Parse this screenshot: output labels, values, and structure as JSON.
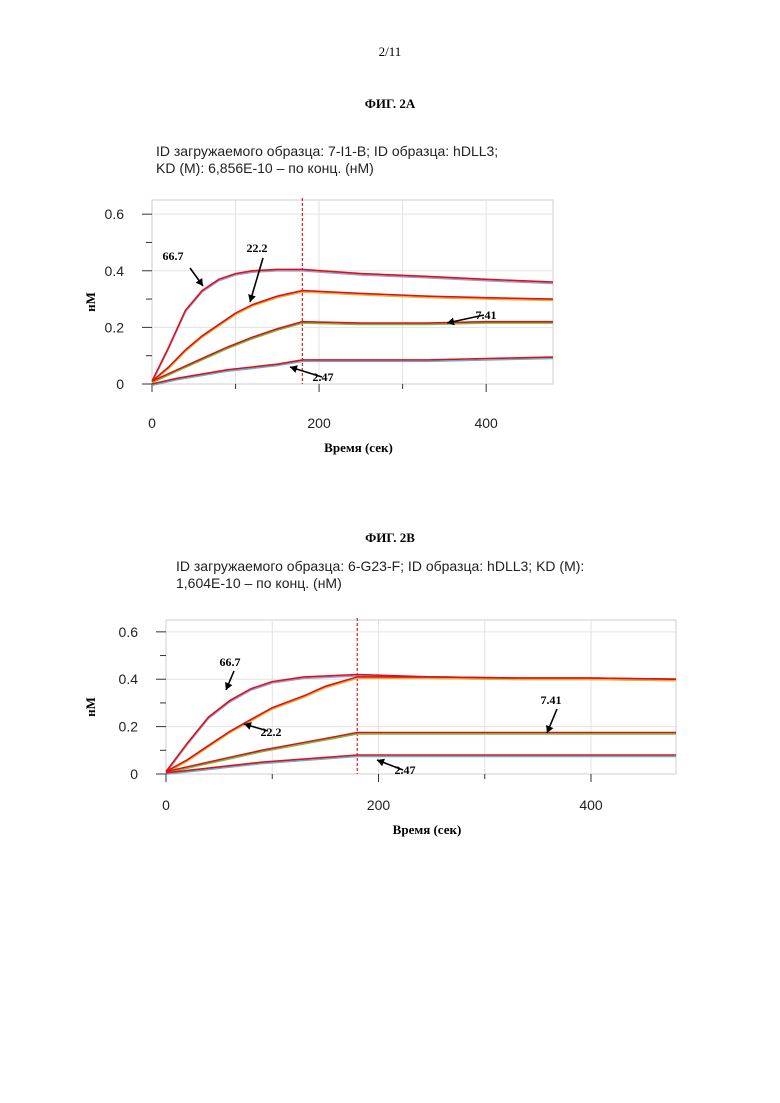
{
  "page": {
    "number": "2/11"
  },
  "charts": [
    {
      "id": "a",
      "fig_title": "ФИГ. 2А",
      "info_line1": "ID загружаемого образца: 7-I1-B; ID образца: hDLL3;",
      "info_line2": "KD (М): 6,856E-10 – по конц. (нМ)",
      "xlabel": "Время (сек)",
      "ylabel": "нМ",
      "xticks": [
        "0",
        "200",
        "400"
      ],
      "yticks": [
        "0",
        "0.2",
        "0.4",
        "0.6"
      ],
      "annotations": [
        "66.7",
        "22.2",
        "7.41",
        "2.47"
      ]
    },
    {
      "id": "b",
      "fig_title": "ФИГ. 2В",
      "info_line1": "ID загружаемого образца: 6-G23-F; ID образца: hDLL3; KD (M):",
      "info_line2": "1,604E-10 – по конц. (нМ)",
      "xlabel": "Время (сек)",
      "ylabel": "нМ",
      "xticks": [
        "0",
        "200",
        "400"
      ],
      "yticks": [
        "0",
        "0.2",
        "0.4",
        "0.6"
      ],
      "annotations": [
        "66.7",
        "22.2",
        "7.41",
        "2.47"
      ]
    }
  ],
  "chart_data": [
    {
      "type": "line",
      "title": "ФИГ. 2А",
      "xlabel": "Время (сек)",
      "ylabel": "нМ",
      "xlim": [
        0,
        480
      ],
      "ylim": [
        0,
        0.65
      ],
      "grid": true,
      "association_end_x": 180,
      "series": [
        {
          "name": "66.7",
          "color": "#9999dd",
          "fit_color": "#e01010",
          "points": [
            [
              0,
              0.01
            ],
            [
              20,
              0.13
            ],
            [
              40,
              0.26
            ],
            [
              60,
              0.33
            ],
            [
              80,
              0.37
            ],
            [
              100,
              0.39
            ],
            [
              120,
              0.4
            ],
            [
              150,
              0.405
            ],
            [
              180,
              0.405
            ],
            [
              250,
              0.39
            ],
            [
              330,
              0.38
            ],
            [
              400,
              0.37
            ],
            [
              480,
              0.36
            ]
          ]
        },
        {
          "name": "22.2",
          "color": "#e8b030",
          "fit_color": "#e01010",
          "points": [
            [
              0,
              0.01
            ],
            [
              20,
              0.06
            ],
            [
              40,
              0.12
            ],
            [
              60,
              0.17
            ],
            [
              80,
              0.21
            ],
            [
              100,
              0.25
            ],
            [
              120,
              0.28
            ],
            [
              150,
              0.31
            ],
            [
              180,
              0.33
            ],
            [
              250,
              0.32
            ],
            [
              330,
              0.31
            ],
            [
              400,
              0.305
            ],
            [
              480,
              0.3
            ]
          ]
        },
        {
          "name": "7.41",
          "color": "#6ac040",
          "fit_color": "#e01010",
          "points": [
            [
              0,
              0.01
            ],
            [
              30,
              0.05
            ],
            [
              60,
              0.09
            ],
            [
              90,
              0.13
            ],
            [
              120,
              0.165
            ],
            [
              150,
              0.195
            ],
            [
              180,
              0.22
            ],
            [
              250,
              0.215
            ],
            [
              330,
              0.215
            ],
            [
              400,
              0.22
            ],
            [
              480,
              0.22
            ]
          ]
        },
        {
          "name": "2.47",
          "color": "#60b0d8",
          "fit_color": "#e01010",
          "points": [
            [
              0,
              0.0
            ],
            [
              30,
              0.02
            ],
            [
              60,
              0.035
            ],
            [
              90,
              0.05
            ],
            [
              120,
              0.06
            ],
            [
              150,
              0.07
            ],
            [
              180,
              0.085
            ],
            [
              250,
              0.085
            ],
            [
              330,
              0.085
            ],
            [
              400,
              0.09
            ],
            [
              480,
              0.095
            ]
          ]
        }
      ]
    },
    {
      "type": "line",
      "title": "ФИГ. 2В",
      "xlabel": "Время (сек)",
      "ylabel": "нМ",
      "xlim": [
        0,
        480
      ],
      "ylim": [
        0,
        0.65
      ],
      "grid": true,
      "association_end_x": 180,
      "series": [
        {
          "name": "66.7",
          "color": "#9999dd",
          "fit_color": "#e01010",
          "points": [
            [
              0,
              0.01
            ],
            [
              20,
              0.13
            ],
            [
              40,
              0.24
            ],
            [
              60,
              0.31
            ],
            [
              80,
              0.36
            ],
            [
              100,
              0.39
            ],
            [
              130,
              0.41
            ],
            [
              180,
              0.42
            ],
            [
              250,
              0.41
            ],
            [
              330,
              0.405
            ],
            [
              400,
              0.405
            ],
            [
              480,
              0.4
            ]
          ]
        },
        {
          "name": "22.2",
          "color": "#e8b030",
          "fit_color": "#e01010",
          "points": [
            [
              0,
              0.01
            ],
            [
              20,
              0.06
            ],
            [
              40,
              0.12
            ],
            [
              60,
              0.18
            ],
            [
              80,
              0.23
            ],
            [
              100,
              0.28
            ],
            [
              130,
              0.33
            ],
            [
              150,
              0.37
            ],
            [
              180,
              0.41
            ],
            [
              250,
              0.41
            ],
            [
              330,
              0.405
            ],
            [
              400,
              0.405
            ],
            [
              480,
              0.4
            ]
          ]
        },
        {
          "name": "7.41",
          "color": "#6ac040",
          "fit_color": "#e01010",
          "points": [
            [
              0,
              0.01
            ],
            [
              30,
              0.04
            ],
            [
              60,
              0.07
            ],
            [
              90,
              0.1
            ],
            [
              120,
              0.125
            ],
            [
              150,
              0.15
            ],
            [
              180,
              0.175
            ],
            [
              250,
              0.175
            ],
            [
              330,
              0.175
            ],
            [
              400,
              0.175
            ],
            [
              480,
              0.175
            ]
          ]
        },
        {
          "name": "2.47",
          "color": "#60b0d8",
          "fit_color": "#e01010",
          "points": [
            [
              0,
              0.005
            ],
            [
              30,
              0.02
            ],
            [
              60,
              0.035
            ],
            [
              90,
              0.05
            ],
            [
              120,
              0.06
            ],
            [
              150,
              0.07
            ],
            [
              180,
              0.08
            ],
            [
              250,
              0.08
            ],
            [
              330,
              0.08
            ],
            [
              400,
              0.08
            ],
            [
              480,
              0.08
            ]
          ]
        }
      ]
    }
  ]
}
